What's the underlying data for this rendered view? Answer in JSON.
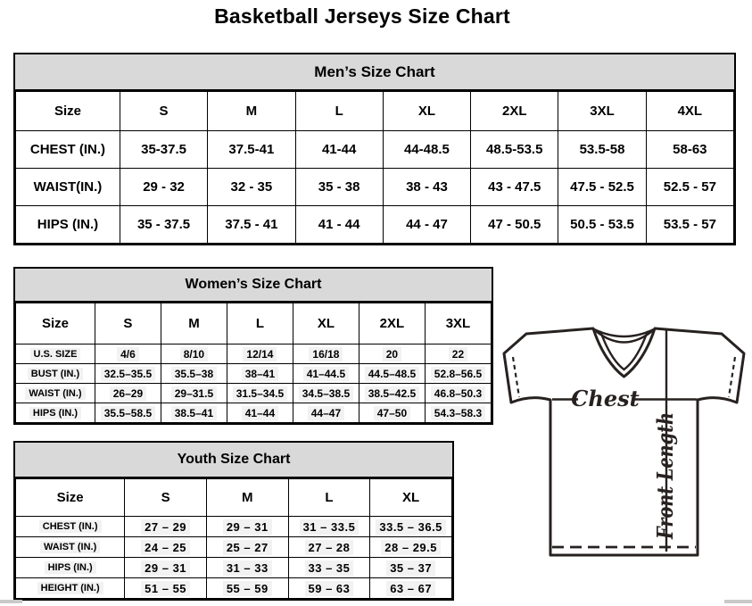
{
  "page": {
    "title": "Basketball Jerseys Size Chart"
  },
  "tables": {
    "men": {
      "title": "Men’s Size Chart",
      "columns": [
        "Size",
        "S",
        "M",
        "L",
        "XL",
        "2XL",
        "3XL",
        "4XL"
      ],
      "rows": [
        {
          "label": "CHEST (IN.)",
          "values": [
            "35-37.5",
            "37.5-41",
            "41-44",
            "44-48.5",
            "48.5-53.5",
            "53.5-58",
            "58-63"
          ]
        },
        {
          "label": "WAIST(IN.)",
          "values": [
            "29 - 32",
            "32 - 35",
            "35 - 38",
            "38 - 43",
            "43 - 47.5",
            "47.5 - 52.5",
            "52.5 - 57"
          ]
        },
        {
          "label": "HIPS (IN.)",
          "values": [
            "35 - 37.5",
            "37.5 - 41",
            "41 - 44",
            "44 - 47",
            "47 - 50.5",
            "50.5 - 53.5",
            "53.5 - 57"
          ]
        }
      ]
    },
    "women": {
      "title": "Women’s Size Chart",
      "columns": [
        "Size",
        "S",
        "M",
        "L",
        "XL",
        "2XL",
        "3XL"
      ],
      "rows": [
        {
          "label": "U.S. SIZE",
          "values": [
            "4/6",
            "8/10",
            "12/14",
            "16/18",
            "20",
            "22"
          ]
        },
        {
          "label": "BUST (IN.)",
          "values": [
            "32.5–35.5",
            "35.5–38",
            "38–41",
            "41–44.5",
            "44.5–48.5",
            "52.8–56.5"
          ]
        },
        {
          "label": "WAIST (IN.)",
          "values": [
            "26–29",
            "29–31.5",
            "31.5–34.5",
            "34.5–38.5",
            "38.5–42.5",
            "46.8–50.3"
          ]
        },
        {
          "label": "HIPS (IN.)",
          "values": [
            "35.5–58.5",
            "38.5–41",
            "41–44",
            "44–47",
            "47–50",
            "54.3–58.3"
          ]
        }
      ]
    },
    "youth": {
      "title": "Youth Size Chart",
      "columns": [
        "Size",
        "S",
        "M",
        "L",
        "XL"
      ],
      "rows": [
        {
          "label": "CHEST (IN.)",
          "values": [
            "27 – 29",
            "29 – 31",
            "31 – 33.5",
            "33.5 – 36.5"
          ]
        },
        {
          "label": "WAIST (IN.)",
          "values": [
            "24 – 25",
            "25 – 27",
            "27 – 28",
            "28 – 29.5"
          ]
        },
        {
          "label": "HIPS (IN.)",
          "values": [
            "29 – 31",
            "31 – 33",
            "33 – 35",
            "35 – 37"
          ]
        },
        {
          "label": "HEIGHT (IN.)",
          "values": [
            "51 – 55",
            "55 – 59",
            "59 – 63",
            "63 – 67"
          ]
        }
      ]
    }
  },
  "diagram": {
    "chest_label": "Chest",
    "front_length_label": "Front Length"
  },
  "colors": {
    "table_header_bg": "#d9d9d9",
    "table_border": "#000000",
    "diagram_stroke": "#272120",
    "value_highlight": "#f2f2f2",
    "scrollbar_fragment": "#c9c9c9"
  }
}
